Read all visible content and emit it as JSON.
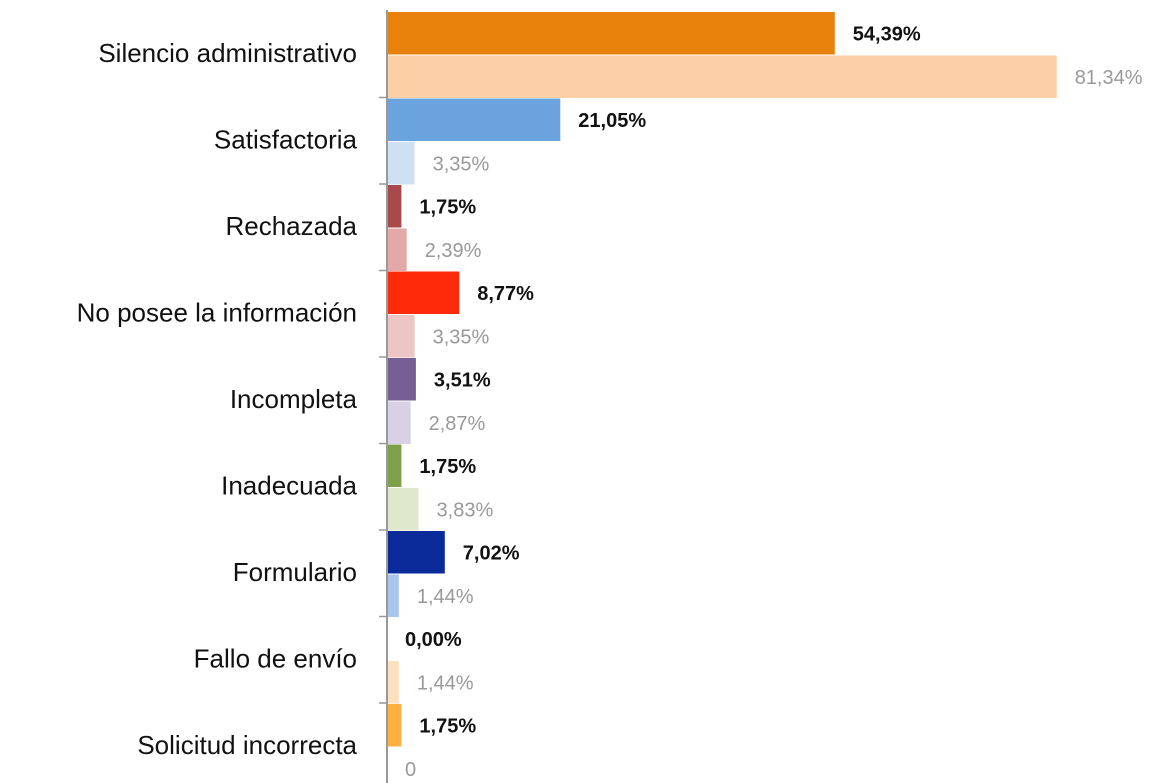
{
  "chart_data": {
    "type": "bar",
    "orientation": "horizontal",
    "categories": [
      "Silencio administrativo",
      "Satisfactoria",
      "Rechazada",
      "No posee la información",
      "Incompleta",
      "Inadecuada",
      "Formulario",
      "Fallo de envío",
      "Solicitud incorrecta"
    ],
    "series": [
      {
        "colors": [
          "#e8820c",
          "#6aa3de",
          "#a84a4a",
          "#ff2a0a",
          "#765f93",
          "#7ea04a",
          "#0a2a9a",
          "#f5c18a",
          "#fbb040"
        ],
        "values": [
          54.39,
          21.05,
          1.75,
          8.77,
          3.51,
          1.75,
          7.02,
          0.0,
          1.75
        ],
        "value_labels": [
          "54,39%",
          "21,05%",
          "1,75%",
          "8,77%",
          "3,51%",
          "1,75%",
          "7,02%",
          "0,00%",
          "1,75%"
        ]
      },
      {
        "colors": [
          "#fccfa6",
          "#cfe0f3",
          "#e3a9a8",
          "#ecc5c5",
          "#d8d0e4",
          "#dfe8cc",
          "#a9c6ef",
          "#fde1bf",
          "#dddddd"
        ],
        "values": [
          81.34,
          3.35,
          2.39,
          3.35,
          2.87,
          3.83,
          1.44,
          1.44,
          0
        ],
        "value_labels": [
          "81,34%",
          "3,35%",
          "2,39%",
          "3,35%",
          "2,87%",
          "3,83%",
          "1,44%",
          "1,44%",
          "0"
        ]
      }
    ],
    "xlim": [
      0,
      90
    ]
  }
}
